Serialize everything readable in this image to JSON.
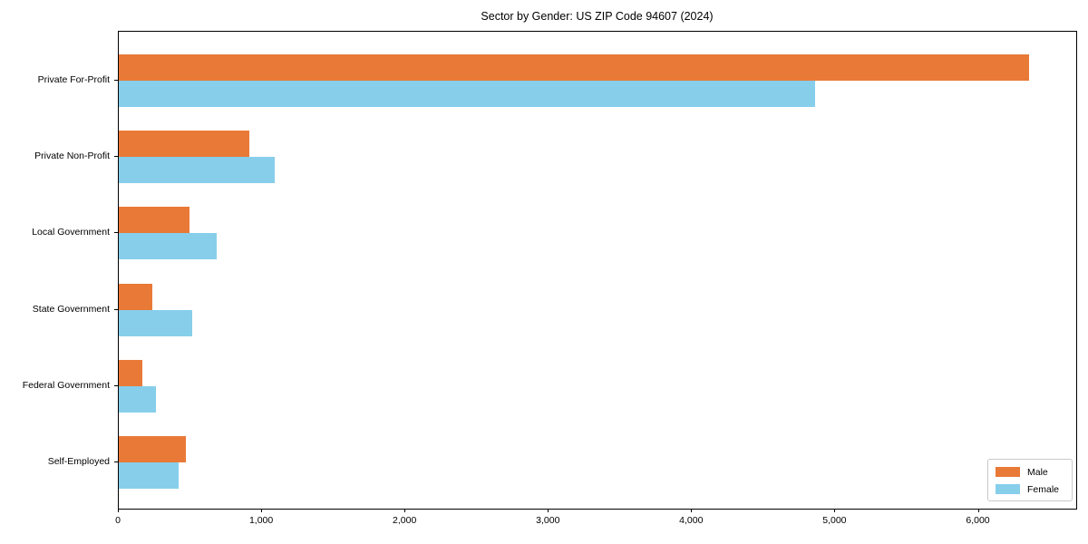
{
  "chart_data": {
    "type": "bar",
    "orientation": "horizontal",
    "title": "Sector by Gender: US ZIP Code 94607 (2024)",
    "categories": [
      "Private For-Profit",
      "Private Non-Profit",
      "Local Government",
      "State Government",
      "Federal Government",
      "Self-Employed"
    ],
    "series": [
      {
        "name": "Male",
        "color": "#E97937",
        "values": [
          6350,
          910,
          490,
          235,
          165,
          465
        ]
      },
      {
        "name": "Female",
        "color": "#87CEEB",
        "values": [
          4860,
          1090,
          680,
          510,
          260,
          415
        ]
      }
    ],
    "xlabel": "",
    "ylabel": "",
    "xlim": [
      0,
      6680
    ],
    "x_ticks": [
      0,
      1000,
      2000,
      3000,
      4000,
      5000,
      6000
    ],
    "grid": false,
    "legend": {
      "position": "lower right"
    }
  }
}
